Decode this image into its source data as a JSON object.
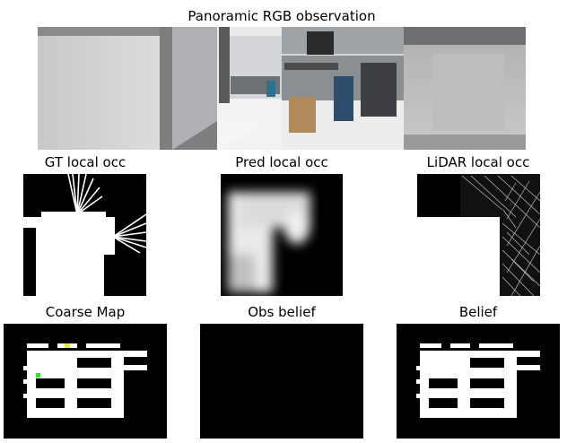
{
  "panorama": {
    "title": "Panoramic RGB observation"
  },
  "row2": {
    "gt": {
      "title": "GT local occ"
    },
    "pred": {
      "title": "Pred local occ"
    },
    "lidar": {
      "title": "LiDAR local occ"
    }
  },
  "row3": {
    "coarse": {
      "title": "Coarse Map"
    },
    "obs": {
      "title": "Obs belief"
    },
    "belief": {
      "title": "Belief"
    }
  },
  "colors": {
    "background": "#ffffff",
    "occupied": "#000000",
    "free": "#ffffff",
    "agent_marker": "#33dd33",
    "goal_marker": "#e8e830"
  }
}
